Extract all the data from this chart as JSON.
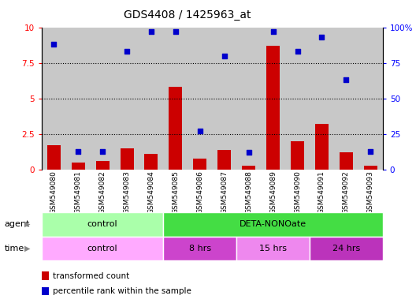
{
  "title": "GDS4408 / 1425963_at",
  "samples": [
    "GSM549080",
    "GSM549081",
    "GSM549082",
    "GSM549083",
    "GSM549084",
    "GSM549085",
    "GSM549086",
    "GSM549087",
    "GSM549088",
    "GSM549089",
    "GSM549090",
    "GSM549091",
    "GSM549092",
    "GSM549093"
  ],
  "bar_values": [
    1.7,
    0.5,
    0.6,
    1.5,
    1.1,
    5.8,
    0.8,
    1.4,
    0.3,
    8.7,
    2.0,
    3.2,
    1.2,
    0.3
  ],
  "dot_values": [
    88,
    13,
    13,
    83,
    97,
    97,
    27,
    80,
    12,
    97,
    83,
    93,
    63,
    13
  ],
  "ylim_left": [
    0,
    10
  ],
  "ylim_right": [
    0,
    100
  ],
  "yticks_left": [
    0,
    2.5,
    5,
    7.5,
    10
  ],
  "yticks_right": [
    0,
    25,
    50,
    75,
    100
  ],
  "ytick_labels_left": [
    "0",
    "2.5",
    "5",
    "7.5",
    "10"
  ],
  "ytick_labels_right": [
    "0",
    "25",
    "50",
    "75",
    "100%"
  ],
  "bar_color": "#cc0000",
  "dot_color": "#0000cc",
  "bg_color": "#ffffff",
  "col_bg": "#c8c8c8",
  "agent_control_color": "#aaffaa",
  "agent_deta_color": "#44dd44",
  "time_control_color": "#ffaaff",
  "time_8hrs_color": "#cc44cc",
  "time_15hrs_color": "#ee88ee",
  "time_24hrs_color": "#bb33bb",
  "legend_bar_label": "transformed count",
  "legend_dot_label": "percentile rank within the sample",
  "xlabel_agent": "agent",
  "xlabel_time": "time"
}
